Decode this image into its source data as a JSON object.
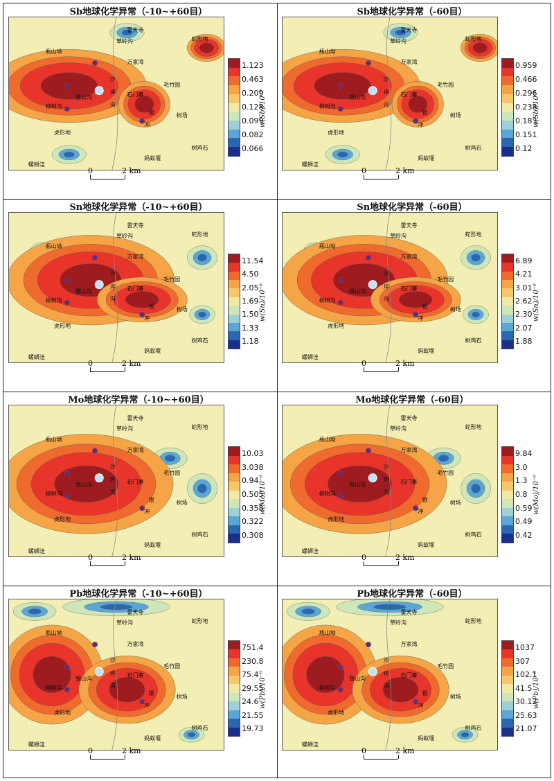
{
  "panels": [
    {
      "title": "Sb地球化学异常（-10~+60目）",
      "ylabel": "w(Sb)/10⁻⁶",
      "ticks": [
        "1.123",
        "0.463",
        "0.209",
        "0.128",
        "0.099",
        "0.082",
        "0.066"
      ]
    },
    {
      "title": "Sb地球化学异常（-60目）",
      "ylabel": "w(Sb)/10⁻⁶",
      "ticks": [
        "0.959",
        "0.466",
        "0.296",
        "0.238",
        "0.183",
        "0.151",
        "0.12"
      ]
    },
    {
      "title": "Sn地球化学异常（-10~+60目）",
      "ylabel": "w(Sn)/10⁻⁶",
      "ticks": [
        "11.54",
        "4.50",
        "2.05",
        "1.69",
        "1.50",
        "1.33",
        "1.18"
      ]
    },
    {
      "title": "Sn地球化学异常（-60目）",
      "ylabel": "w(Sn)/10⁻⁶",
      "ticks": [
        "6.89",
        "4.21",
        "3.01",
        "2.62",
        "2.30",
        "2.07",
        "1.88"
      ]
    },
    {
      "title": "Mo地球化学异常（-10~+60目）",
      "ylabel": "w(Mo)/10⁻⁶",
      "ticks": [
        "10.03",
        "3.038",
        "0.94",
        "0.505",
        "0.358",
        "0.322",
        "0.308"
      ]
    },
    {
      "title": "Mo地球化学异常（-60目）",
      "ylabel": "w(Mo)/10⁻⁶",
      "ticks": [
        "9.84",
        "3.0",
        "1.3",
        "0.8",
        "0.59",
        "0.49",
        "0.42"
      ]
    },
    {
      "title": "Pb地球化学异常（-10~+60目）",
      "ylabel": "w(Pb)/10⁻⁶",
      "ticks": [
        "751.4",
        "230.8",
        "75.4",
        "29.55",
        "24.6",
        "21.55",
        "19.73"
      ]
    },
    {
      "title": "Pb地球化学异常（-60目）",
      "ylabel": "w(Pb)/10⁻⁶",
      "ticks": [
        "1037",
        "307",
        "102.1",
        "41.5",
        "30.12",
        "25.63",
        "21.07"
      ]
    }
  ],
  "places": {
    "leitiansi": "雷天寺",
    "caolinggou": "草岭沟",
    "shexingdi": "蛇形地",
    "juanshanao": "瓶山坳",
    "wanjiawan": "万家湾",
    "maozhuyuan": "毛竹园",
    "yinshangou": "银山沟",
    "liushugou": "柳树沟",
    "huxingdi": "虎形地",
    "shuchang": "树场",
    "shujishi": "树鸡石",
    "luoshiwa": "螺蛳洼",
    "mayiyan": "蚂蚁堰",
    "sha": "沙",
    "ping": "坪",
    "gou": "沟",
    "shimenzhai": "石门寨",
    "yin": "银",
    "chong": "冲"
  },
  "scale": {
    "zero": "0",
    "two": "2 km"
  },
  "colors": {
    "ramp": [
      "#9e1b1f",
      "#e8342a",
      "#f06a2e",
      "#f5a446",
      "#f7c86a",
      "#f2e9a6",
      "#cfe6b8",
      "#9ed0d8",
      "#5aa7d6",
      "#2a67b0",
      "#1a2f8a"
    ]
  }
}
